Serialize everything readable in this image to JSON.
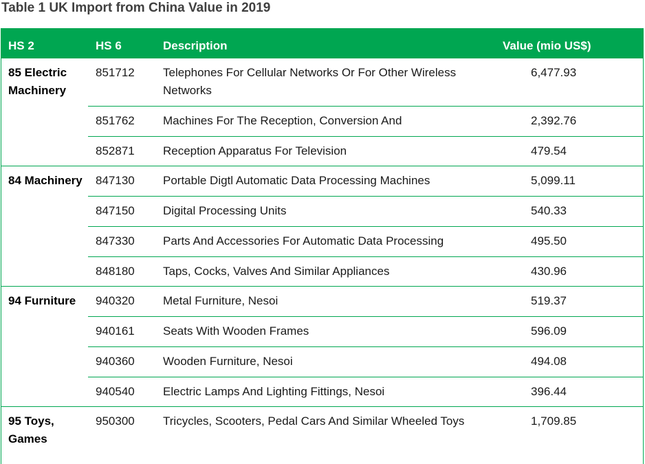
{
  "title": "Table 1 UK Import from China Value in 2019",
  "columns": {
    "hs2": "HS 2",
    "hs6": "HS 6",
    "description": "Description",
    "value": "Value (mio US$)"
  },
  "groups": [
    {
      "hs2": "85 Electric Machinery",
      "rows": [
        {
          "hs6": "851712",
          "description": "Telephones For Cellular Networks Or For Other Wireless Networks",
          "value": "6,477.93"
        },
        {
          "hs6": "851762",
          "description": "Machines For The Reception, Conversion And",
          "value": "2,392.76"
        },
        {
          "hs6": "852871",
          "description": "Reception Apparatus For Television",
          "value": "479.54"
        }
      ]
    },
    {
      "hs2": "84 Machinery",
      "rows": [
        {
          "hs6": "847130",
          "description": "Portable Digtl Automatic Data Processing Machines",
          "value": "5,099.11"
        },
        {
          "hs6": "847150",
          "description": "Digital Processing Units",
          "value": "540.33"
        },
        {
          "hs6": "847330",
          "description": "Parts And Accessories For Automatic Data Processing",
          "value": "495.50"
        },
        {
          "hs6": "848180",
          "description": "Taps, Cocks, Valves And Similar Appliances",
          "value": "430.96"
        }
      ]
    },
    {
      "hs2": "94 Furniture",
      "rows": [
        {
          "hs6": "940320",
          "description": "Metal Furniture, Nesoi",
          "value": "519.37"
        },
        {
          "hs6": "940161",
          "description": "Seats With Wooden Frames",
          "value": "596.09"
        },
        {
          "hs6": "940360",
          "description": "Wooden Furniture, Nesoi",
          "value": "494.08"
        },
        {
          "hs6": "940540",
          "description": "Electric Lamps And Lighting Fittings, Nesoi",
          "value": "396.44"
        }
      ]
    },
    {
      "hs2": "95 Toys, Games",
      "rows": [
        {
          "hs6": "950300",
          "description": "Tricycles, Scooters, Pedal Cars And Similar Wheeled Toys",
          "value": "1,709.85"
        }
      ]
    }
  ]
}
